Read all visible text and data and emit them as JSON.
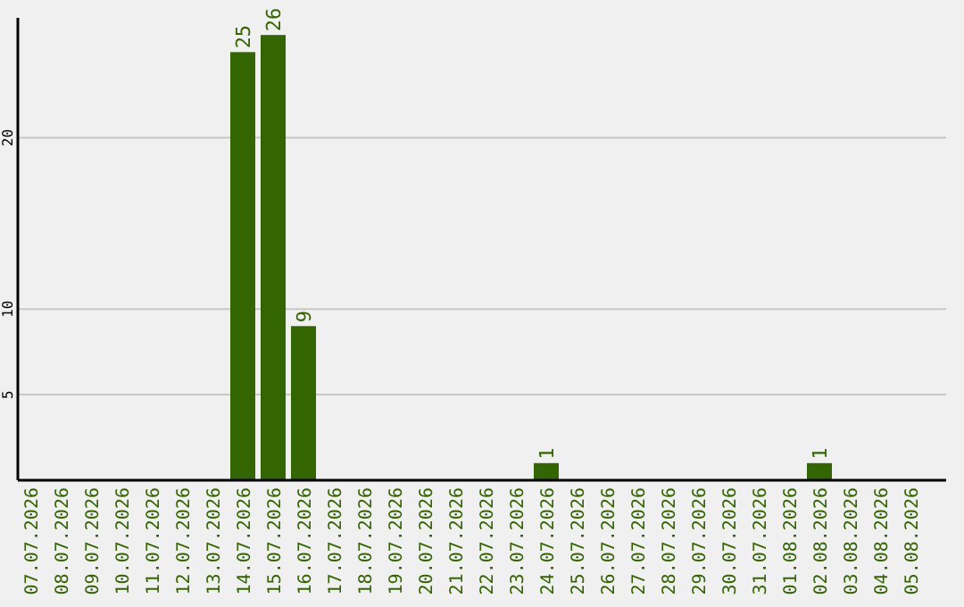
{
  "chart_data": {
    "type": "bar",
    "categories": [
      "07.07.2026",
      "08.07.2026",
      "09.07.2026",
      "10.07.2026",
      "11.07.2026",
      "12.07.2026",
      "13.07.2026",
      "14.07.2026",
      "15.07.2026",
      "16.07.2026",
      "17.07.2026",
      "18.07.2026",
      "19.07.2026",
      "20.07.2026",
      "21.07.2026",
      "22.07.2026",
      "23.07.2026",
      "24.07.2026",
      "25.07.2026",
      "26.07.2026",
      "27.07.2026",
      "28.07.2026",
      "29.07.2026",
      "30.07.2026",
      "31.07.2026",
      "01.08.2026",
      "02.08.2026",
      "03.08.2026",
      "04.08.2026",
      "05.08.2026"
    ],
    "values": [
      0,
      0,
      0,
      0,
      0,
      0,
      0,
      25,
      26,
      9,
      0,
      0,
      0,
      0,
      0,
      0,
      0,
      1,
      0,
      0,
      0,
      0,
      0,
      0,
      0,
      0,
      1,
      0,
      0,
      0
    ],
    "value_labels": [
      null,
      null,
      null,
      null,
      null,
      null,
      null,
      "25",
      "26",
      "9",
      null,
      null,
      null,
      null,
      null,
      null,
      null,
      "1",
      null,
      null,
      null,
      null,
      null,
      null,
      null,
      null,
      "1",
      null,
      null,
      null
    ],
    "color": "#336600",
    "ylim": [
      0,
      27
    ],
    "yticks": [
      5,
      10,
      20
    ],
    "grid": "y"
  }
}
